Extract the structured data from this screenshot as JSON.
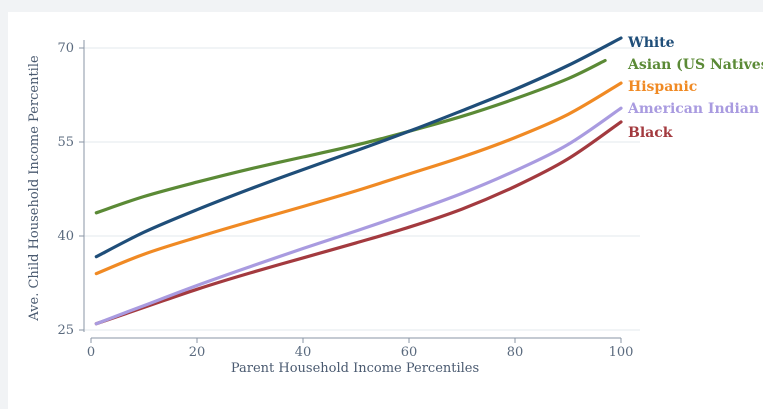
{
  "chart_data": {
    "type": "line",
    "title": "",
    "xlabel": "Parent Household Income Percentiles",
    "ylabel": "Ave. Child Household Income Percentile",
    "xlim": [
      0,
      100
    ],
    "ylim": [
      25,
      72
    ],
    "x_ticks": [
      "0",
      "20",
      "40",
      "60",
      "80",
      "100"
    ],
    "y_ticks": [
      "25",
      "40",
      "55",
      "70"
    ],
    "grid": "horizontal",
    "legend_placement": "right, labels at line ends",
    "series": [
      {
        "name": "White",
        "color": "#1f4e79",
        "x": [
          1,
          10,
          20,
          30,
          40,
          50,
          60,
          70,
          80,
          90,
          100
        ],
        "y": [
          36.7,
          40.6,
          44.2,
          47.5,
          50.6,
          53.6,
          56.7,
          60.0,
          63.4,
          67.2,
          71.6
        ]
      },
      {
        "name": "Asian (US Natives)",
        "color": "#5b8a36",
        "x": [
          1,
          10,
          20,
          30,
          40,
          50,
          60,
          70,
          80,
          90,
          97
        ],
        "y": [
          43.7,
          46.3,
          48.6,
          50.7,
          52.6,
          54.5,
          56.7,
          59.1,
          61.9,
          65.1,
          68.0
        ]
      },
      {
        "name": "Hispanic",
        "color": "#f08a24",
        "x": [
          1,
          10,
          20,
          30,
          40,
          50,
          60,
          70,
          80,
          90,
          100
        ],
        "y": [
          34.0,
          37.1,
          39.8,
          42.3,
          44.7,
          47.2,
          49.9,
          52.6,
          55.7,
          59.4,
          64.4
        ]
      },
      {
        "name": "American Indian",
        "color": "#a99be0",
        "x": [
          1,
          10,
          20,
          30,
          40,
          50,
          60,
          70,
          80,
          90,
          100
        ],
        "y": [
          26.0,
          28.9,
          32.1,
          35.1,
          38.0,
          40.8,
          43.7,
          46.8,
          50.4,
          54.6,
          60.4
        ]
      },
      {
        "name": "Black",
        "color": "#a33a3f",
        "x": [
          1,
          10,
          20,
          30,
          40,
          50,
          60,
          70,
          80,
          90,
          100
        ],
        "y": [
          26.0,
          28.6,
          31.5,
          34.1,
          36.5,
          38.9,
          41.4,
          44.3,
          47.9,
          52.3,
          58.2
        ]
      }
    ]
  }
}
